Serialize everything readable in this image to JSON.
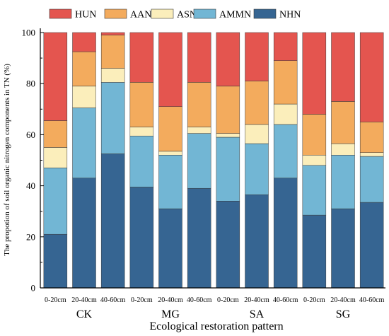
{
  "chart_data": {
    "type": "bar",
    "stacked": true,
    "xlabel": "Ecological restoration pattern",
    "ylabel": "The propotion of soil organic nitrogen components in TN (%)",
    "ylim": [
      0,
      100
    ],
    "yticks": [
      "0",
      "20",
      "40",
      "60",
      "80",
      "100"
    ],
    "legend_position": "top",
    "categories": [
      "0-20cm",
      "20-40cm",
      "40-60cm",
      "0-20cm",
      "20-40cm",
      "40-60cm",
      "0-20cm",
      "20-40cm",
      "40-60cm",
      "0-20cm",
      "20-40cm",
      "40-60cm"
    ],
    "groups": [
      {
        "label": "CK",
        "members": 3
      },
      {
        "label": "MG",
        "members": 3
      },
      {
        "label": "SA",
        "members": 3
      },
      {
        "label": "SG",
        "members": 3
      }
    ],
    "series": [
      {
        "name": "NHN",
        "color": "#366592",
        "values": [
          21,
          43,
          52.5,
          39.5,
          31,
          39,
          34,
          36.5,
          43,
          28.5,
          31,
          33.5
        ]
      },
      {
        "name": "AMMN",
        "color": "#72b6d4",
        "values": [
          26,
          27.5,
          28,
          20,
          21,
          21.5,
          25,
          20,
          21,
          19.5,
          21,
          18
        ]
      },
      {
        "name": "ASN",
        "color": "#fbeebb",
        "values": [
          8,
          8.5,
          5.5,
          3.5,
          1.5,
          2.5,
          1.5,
          7.5,
          8,
          4,
          4.5,
          1.5
        ]
      },
      {
        "name": "AAN",
        "color": "#f3ab5d",
        "values": [
          10.5,
          13.5,
          13,
          17.5,
          17.5,
          17.5,
          18.5,
          17,
          17,
          16,
          16.5,
          12
        ]
      },
      {
        "name": "HUN",
        "color": "#e4554f",
        "values": [
          34.5,
          7.5,
          1,
          19.5,
          29,
          19.5,
          21,
          19,
          11,
          32,
          27,
          35
        ]
      }
    ],
    "legend_order": [
      "HUN",
      "AAN",
      "ASN",
      "AMMN",
      "NHN"
    ]
  }
}
